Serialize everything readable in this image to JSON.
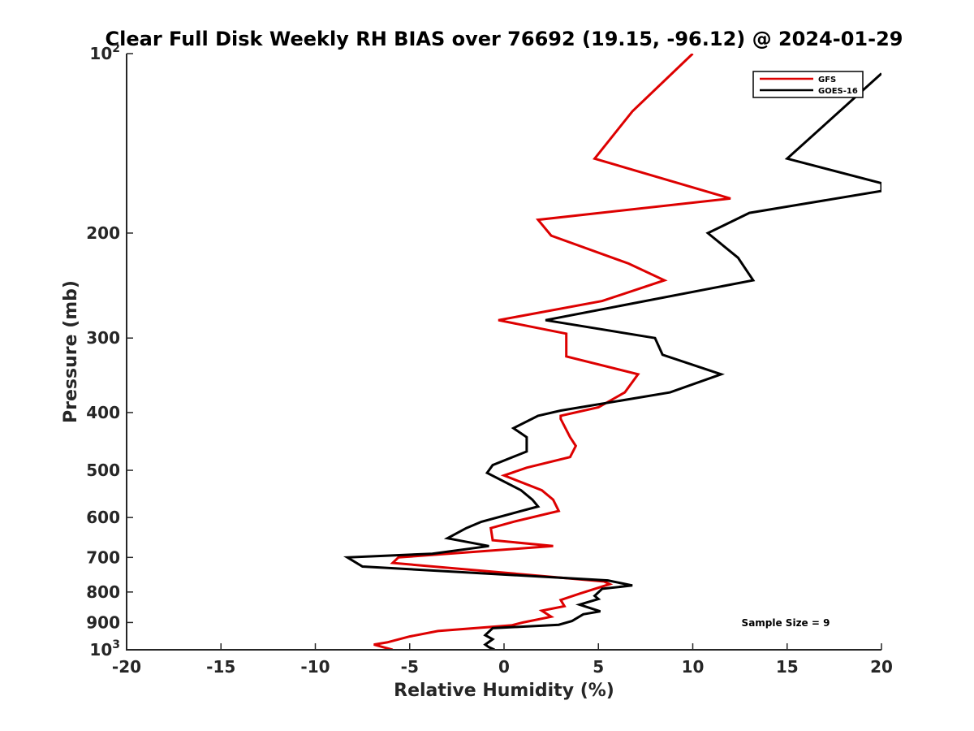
{
  "chart_data": {
    "type": "line",
    "title": "Clear Full Disk Weekly RH BIAS over 76692 (19.15, -96.12) @ 2024-01-29",
    "xlabel": "Relative Humidity (%)",
    "ylabel": "Pressure (mb)",
    "xlim": [
      -20,
      20
    ],
    "ylim": [
      1000,
      100
    ],
    "yscale": "log",
    "x_ticks": [
      -20,
      -15,
      -10,
      -5,
      0,
      5,
      10,
      15,
      20
    ],
    "x_tick_labels": [
      "-20",
      "-15",
      "-10",
      "-5",
      "0",
      "5",
      "10",
      "15",
      "20"
    ],
    "y_ticks": [
      {
        "value": 100,
        "base": "10",
        "exp": "2"
      },
      {
        "value": 200,
        "label": "200"
      },
      {
        "value": 300,
        "label": "300"
      },
      {
        "value": 400,
        "label": "400"
      },
      {
        "value": 500,
        "label": "500"
      },
      {
        "value": 600,
        "label": "600"
      },
      {
        "value": 700,
        "label": "700"
      },
      {
        "value": 800,
        "label": "800"
      },
      {
        "value": 900,
        "label": "900"
      },
      {
        "value": 1000,
        "base": "10",
        "exp": "3"
      }
    ],
    "legend_position": "top-right",
    "annotation": "Sample Size = 9",
    "series": [
      {
        "name": "GFS",
        "color": "#dd0000",
        "points": [
          [
            10.0,
            100
          ],
          [
            6.8,
            125
          ],
          [
            4.8,
            150
          ],
          [
            12.0,
            175
          ],
          [
            1.8,
            190
          ],
          [
            2.5,
            202
          ],
          [
            6.6,
            225
          ],
          [
            8.5,
            240
          ],
          [
            5.2,
            260
          ],
          [
            -0.3,
            280
          ],
          [
            3.3,
            295
          ],
          [
            3.3,
            322
          ],
          [
            7.1,
            345
          ],
          [
            6.4,
            370
          ],
          [
            5.0,
            392
          ],
          [
            3.0,
            405
          ],
          [
            3.0,
            410
          ],
          [
            3.5,
            440
          ],
          [
            3.8,
            455
          ],
          [
            3.5,
            475
          ],
          [
            1.2,
            495
          ],
          [
            0.0,
            510
          ],
          [
            2.0,
            540
          ],
          [
            2.6,
            560
          ],
          [
            2.9,
            585
          ],
          [
            0.5,
            610
          ],
          [
            -0.7,
            625
          ],
          [
            -0.6,
            655
          ],
          [
            2.6,
            670
          ],
          [
            -5.6,
            700
          ],
          [
            -5.9,
            715
          ],
          [
            5.3,
            768
          ],
          [
            5.6,
            776
          ],
          [
            4.0,
            805
          ],
          [
            3.0,
            825
          ],
          [
            3.2,
            845
          ],
          [
            2.0,
            860
          ],
          [
            2.5,
            880
          ],
          [
            1.0,
            900
          ],
          [
            0.4,
            910
          ],
          [
            -3.5,
            930
          ],
          [
            -5.0,
            950
          ],
          [
            -6.2,
            972
          ],
          [
            -6.9,
            980
          ],
          [
            -6.4,
            990
          ],
          [
            -5.9,
            1000
          ]
        ]
      },
      {
        "name": "GOES-16",
        "color": "#000000",
        "points": [
          [
            20.0,
            108
          ],
          [
            15.0,
            150
          ],
          [
            20.0,
            165
          ],
          [
            20.0,
            170
          ],
          [
            13.0,
            185
          ],
          [
            10.8,
            200
          ],
          [
            12.4,
            220
          ],
          [
            13.2,
            240
          ],
          [
            2.2,
            280
          ],
          [
            8.0,
            300
          ],
          [
            8.4,
            320
          ],
          [
            11.5,
            345
          ],
          [
            8.8,
            370
          ],
          [
            3.0,
            397
          ],
          [
            1.8,
            405
          ],
          [
            0.5,
            425
          ],
          [
            1.2,
            440
          ],
          [
            1.2,
            465
          ],
          [
            -0.6,
            490
          ],
          [
            -0.9,
            505
          ],
          [
            0.9,
            540
          ],
          [
            1.5,
            560
          ],
          [
            1.8,
            575
          ],
          [
            -1.2,
            610
          ],
          [
            -2.0,
            625
          ],
          [
            -3.0,
            650
          ],
          [
            -0.8,
            670
          ],
          [
            -3.8,
            690
          ],
          [
            -8.3,
            700
          ],
          [
            -7.5,
            725
          ],
          [
            5.5,
            765
          ],
          [
            6.8,
            780
          ],
          [
            5.2,
            790
          ],
          [
            4.8,
            812
          ],
          [
            5.0,
            822
          ],
          [
            4.0,
            840
          ],
          [
            5.1,
            862
          ],
          [
            4.2,
            872
          ],
          [
            3.6,
            895
          ],
          [
            2.9,
            908
          ],
          [
            -0.6,
            920
          ],
          [
            -1.0,
            945
          ],
          [
            -0.6,
            960
          ],
          [
            -1.0,
            980
          ],
          [
            -0.8,
            990
          ],
          [
            -0.5,
            1000
          ]
        ]
      }
    ]
  }
}
